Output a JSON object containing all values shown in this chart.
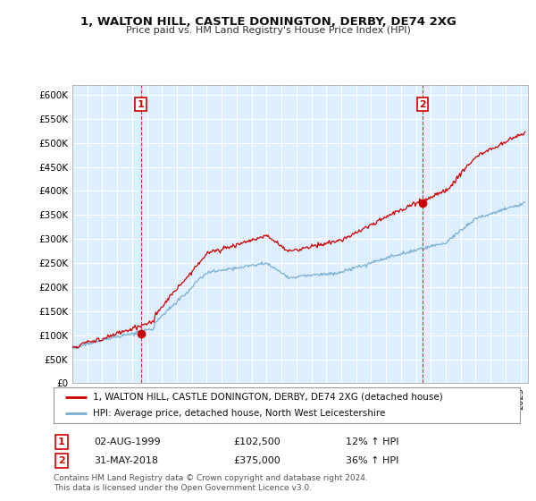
{
  "title": "1, WALTON HILL, CASTLE DONINGTON, DERBY, DE74 2XG",
  "subtitle": "Price paid vs. HM Land Registry's House Price Index (HPI)",
  "red_label": "1, WALTON HILL, CASTLE DONINGTON, DERBY, DE74 2XG (detached house)",
  "blue_label": "HPI: Average price, detached house, North West Leicestershire",
  "footnote1": "Contains HM Land Registry data © Crown copyright and database right 2024.",
  "footnote2": "This data is licensed under the Open Government Licence v3.0.",
  "annotation1": {
    "num": "1",
    "date": "02-AUG-1999",
    "price": "£102,500",
    "pct": "12% ↑ HPI"
  },
  "annotation2": {
    "num": "2",
    "date": "31-MAY-2018",
    "price": "£375,000",
    "pct": "36% ↑ HPI"
  },
  "xmin": 1995.0,
  "xmax": 2025.5,
  "ymin": 0,
  "ymax": 620000,
  "yticks": [
    0,
    50000,
    100000,
    150000,
    200000,
    250000,
    300000,
    350000,
    400000,
    450000,
    500000,
    550000,
    600000
  ],
  "ytick_labels": [
    "£0",
    "£50K",
    "£100K",
    "£150K",
    "£200K",
    "£250K",
    "£300K",
    "£350K",
    "£400K",
    "£450K",
    "£500K",
    "£550K",
    "£600K"
  ],
  "sale1_x": 1999.58,
  "sale1_y": 102500,
  "sale2_x": 2018.42,
  "sale2_y": 375000,
  "red_color": "#cc0000",
  "blue_color": "#7aafd4",
  "plot_bg_color": "#ddeeff",
  "vline_color": "#cc0000",
  "bg_color": "#ffffff",
  "grid_color": "#ffffff"
}
